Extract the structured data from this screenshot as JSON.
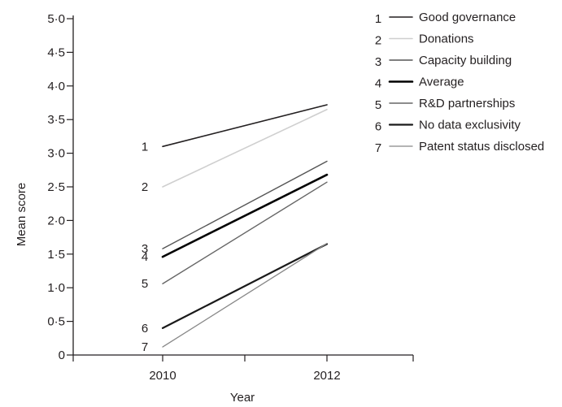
{
  "chart_data": {
    "type": "line",
    "title": "",
    "xlabel": "Year",
    "ylabel": "Mean score",
    "categories": [
      "2010",
      "2012"
    ],
    "y_tick_labels": [
      "0",
      "0·5",
      "1·0",
      "1·5",
      "2·0",
      "2·5",
      "3·0",
      "3·5",
      "4·0",
      "4·5",
      "5·0"
    ],
    "ylim": [
      0,
      5
    ],
    "grid": false,
    "legend_position": "top-right",
    "series": [
      {
        "id": "1",
        "name": "Good governance",
        "values": [
          3.1,
          3.72
        ],
        "color": "#231f20",
        "width": 1.6
      },
      {
        "id": "2",
        "name": "Donations",
        "values": [
          2.5,
          3.65
        ],
        "color": "#cfcfcf",
        "width": 1.6
      },
      {
        "id": "3",
        "name": "Capacity building",
        "values": [
          1.58,
          2.88
        ],
        "color": "#555555",
        "width": 1.4
      },
      {
        "id": "4",
        "name": "Average",
        "values": [
          1.46,
          2.68
        ],
        "color": "#000000",
        "width": 2.6
      },
      {
        "id": "5",
        "name": "R&D partnerships",
        "values": [
          1.06,
          2.57
        ],
        "color": "#666666",
        "width": 1.4
      },
      {
        "id": "6",
        "name": "No data exclusivity",
        "values": [
          0.4,
          1.65
        ],
        "color": "#1a1a1a",
        "width": 2.2
      },
      {
        "id": "7",
        "name": "Patent status disclosed",
        "values": [
          0.12,
          1.66
        ],
        "color": "#888888",
        "width": 1.3
      }
    ]
  }
}
